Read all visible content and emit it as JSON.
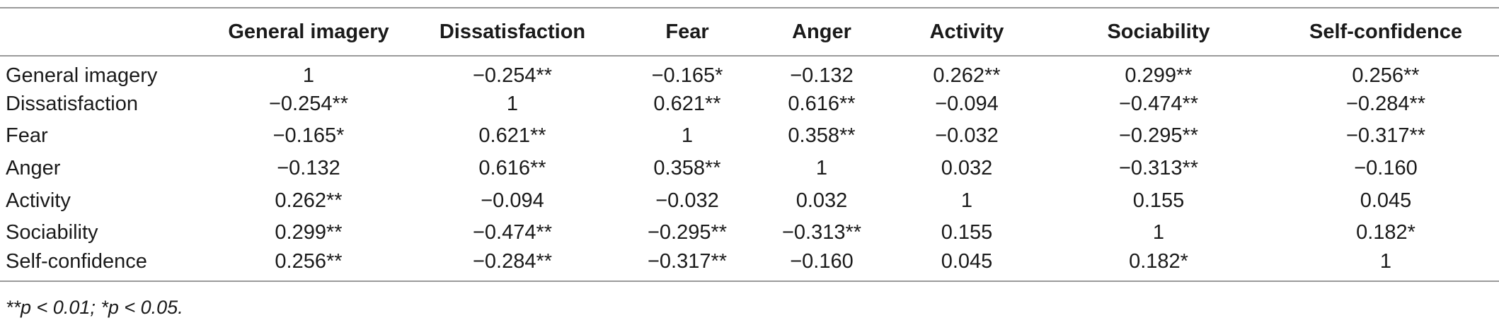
{
  "table": {
    "columns": [
      "",
      "General imagery",
      "Dissatisfaction",
      "Fear",
      "Anger",
      "Activity",
      "Sociability",
      "Self-confidence"
    ],
    "rows": [
      {
        "label": "General imagery",
        "values": [
          "1",
          "−0.254**",
          "−0.165*",
          "−0.132",
          "0.262**",
          "0.299**",
          "0.256**"
        ]
      },
      {
        "label": "Dissatisfaction",
        "values": [
          "−0.254**",
          "1",
          "0.621**",
          "0.616**",
          "−0.094",
          "−0.474**",
          "−0.284**"
        ]
      },
      {
        "label": "Fear",
        "values": [
          "−0.165*",
          "0.621**",
          "1",
          "0.358**",
          "−0.032",
          "−0.295**",
          "−0.317**"
        ]
      },
      {
        "label": "Anger",
        "values": [
          "−0.132",
          "0.616**",
          "0.358**",
          "1",
          "0.032",
          "−0.313**",
          "−0.160"
        ]
      },
      {
        "label": "Activity",
        "values": [
          "0.262**",
          "−0.094",
          "−0.032",
          "0.032",
          "1",
          "0.155",
          "0.045"
        ]
      },
      {
        "label": "Sociability",
        "values": [
          "0.299**",
          "−0.474**",
          "−0.295**",
          "−0.313**",
          "0.155",
          "1",
          "0.182*"
        ]
      },
      {
        "label": "Self-confidence",
        "values": [
          "0.256**",
          "−0.284**",
          "−0.317**",
          "−0.160",
          "0.045",
          "0.182*",
          "1"
        ]
      }
    ]
  },
  "footnote": "**p < 0.01; *p < 0.05."
}
